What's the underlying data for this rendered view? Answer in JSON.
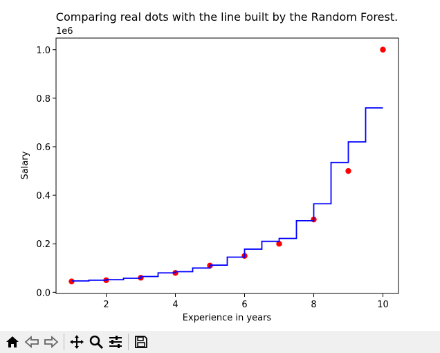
{
  "chart_data": {
    "type": "scatter",
    "title": "Comparing real dots with the line built by the Random Forest.",
    "xlabel": "Experience in years",
    "ylabel": "Salary",
    "y_offset_label": "1e6",
    "xlim": [
      0.55,
      10.45
    ],
    "ylim": [
      -0.0048,
      1.0478
    ],
    "x_ticks": [
      2,
      4,
      6,
      8,
      10
    ],
    "x_tick_labels": [
      "2",
      "4",
      "6",
      "8",
      "10"
    ],
    "y_ticks": [
      0.0,
      0.2,
      0.4,
      0.6,
      0.8,
      1.0
    ],
    "y_tick_labels": [
      "0.0",
      "0.2",
      "0.4",
      "0.6",
      "0.8",
      "1.0"
    ],
    "grid": false,
    "series": [
      {
        "kind": "scatter",
        "color": "#ff0000",
        "x": [
          1,
          2,
          3,
          4,
          5,
          6,
          7,
          8,
          9,
          10
        ],
        "y": [
          0.045,
          0.05,
          0.06,
          0.08,
          0.11,
          0.15,
          0.2,
          0.3,
          0.5,
          1.0
        ]
      },
      {
        "kind": "step-line",
        "color": "#0000ff",
        "x": [
          1.0,
          1.5,
          2.0,
          2.5,
          3.0,
          3.5,
          4.0,
          4.5,
          5.0,
          5.5,
          6.0,
          6.5,
          7.0,
          7.5,
          8.0,
          8.5,
          9.0,
          9.5,
          10.0
        ],
        "y": [
          0.047,
          0.05,
          0.052,
          0.058,
          0.065,
          0.08,
          0.085,
          0.1,
          0.112,
          0.145,
          0.178,
          0.21,
          0.222,
          0.295,
          0.365,
          0.535,
          0.62,
          0.76,
          0.76
        ]
      }
    ]
  },
  "toolbar": {
    "buttons": [
      {
        "icon": "home-icon",
        "glyph": "home"
      },
      {
        "icon": "back-arrow-icon",
        "glyph": "back"
      },
      {
        "icon": "forward-arrow-icon",
        "glyph": "forward"
      },
      {
        "icon": "pan-icon",
        "glyph": "pan"
      },
      {
        "icon": "zoom-icon",
        "glyph": "zoom"
      },
      {
        "icon": "configure-subplots-icon",
        "glyph": "config"
      },
      {
        "icon": "save-icon",
        "glyph": "save"
      }
    ]
  }
}
